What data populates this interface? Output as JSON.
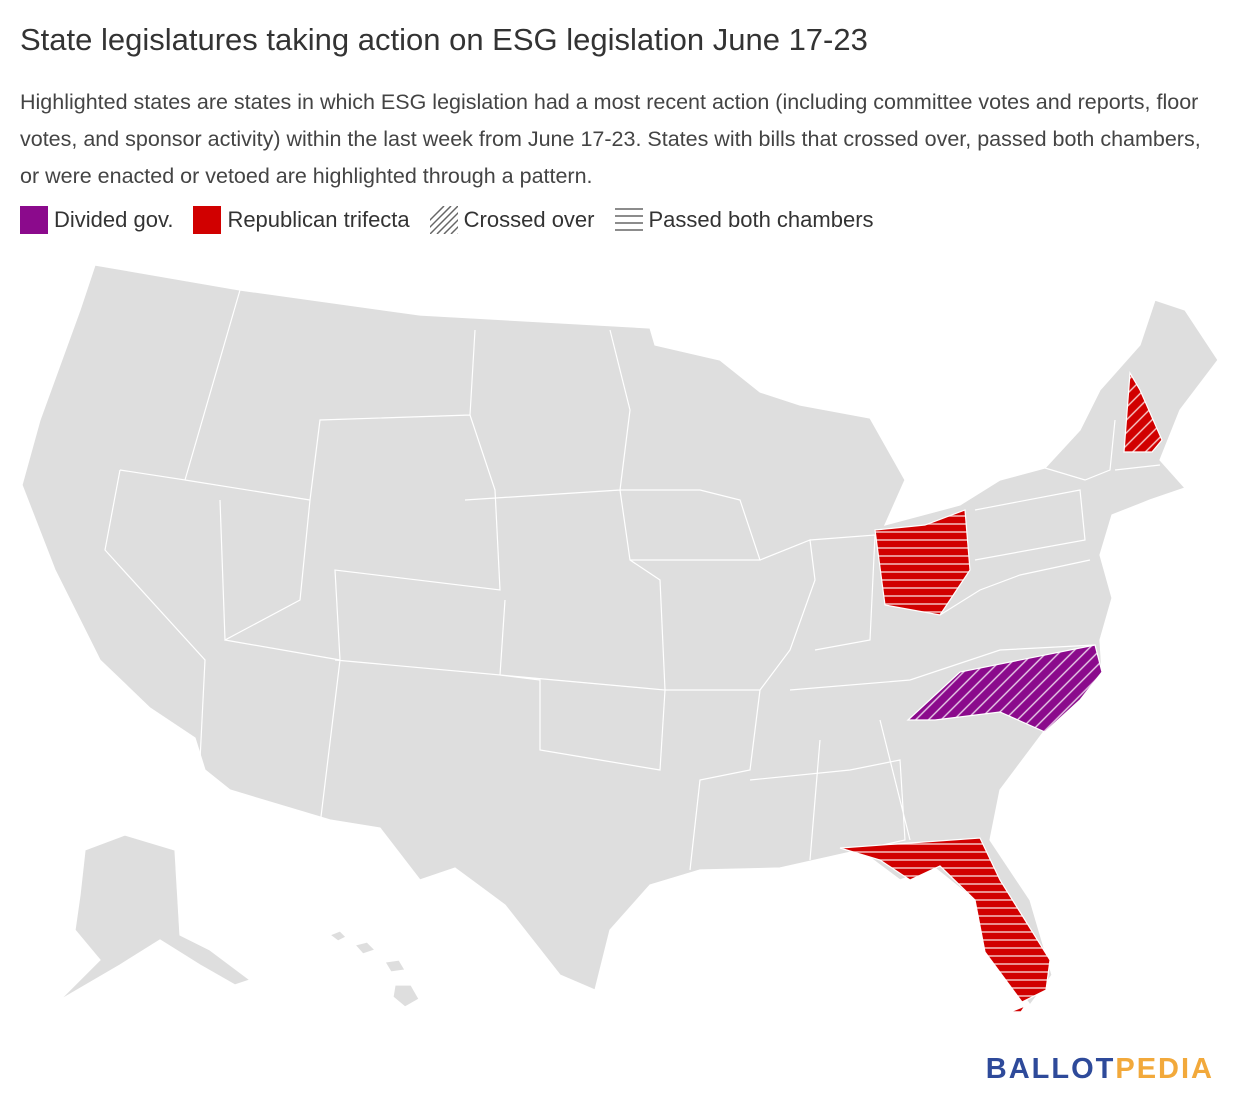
{
  "header": {
    "title": "State legislatures taking action on ESG legislation June 17-23",
    "description": "Highlighted states are states in which ESG legislation had a most recent action (including committee votes and reports, floor votes, and sponsor activity) within the last week from June 17-23. States with bills that crossed over, passed both chambers, or were enacted or vetoed are highlighted through a pattern."
  },
  "legend": [
    {
      "label": "Divided gov.",
      "color": "#8b0a8c"
    },
    {
      "label": "Republican trifecta",
      "color": "#d10000"
    },
    {
      "label": "Crossed over",
      "pattern": "diagonal"
    },
    {
      "label": "Passed both chambers",
      "pattern": "horizontal"
    }
  ],
  "map": {
    "base_color": "#dedede",
    "border_color": "#ffffff"
  },
  "logo": {
    "first": "BALLOT",
    "second": "PEDIA",
    "first_color": "#2e4a9a",
    "second_color": "#f2a93b"
  }
}
